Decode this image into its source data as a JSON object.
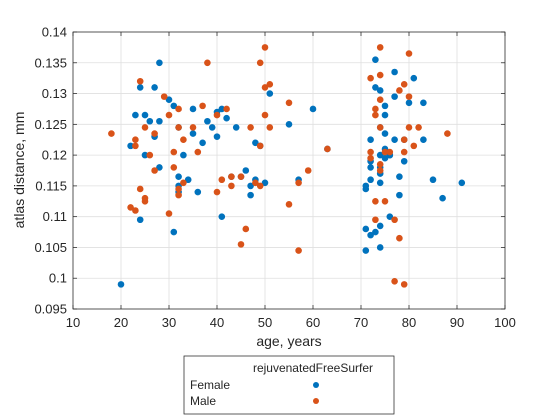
{
  "colors": {
    "female": "#0072BD",
    "male": "#D95319",
    "grid": "#dfdfdf",
    "axis": "#262626"
  },
  "chart_data": {
    "type": "scatter",
    "xlabel": "age, years",
    "ylabel": "atlas distance, mm",
    "xlim": [
      10,
      100
    ],
    "ylim": [
      0.095,
      0.14
    ],
    "xticks": [
      10,
      20,
      30,
      40,
      50,
      60,
      70,
      80,
      90,
      100
    ],
    "xtick_labels": [
      "10",
      "20",
      "30",
      "40",
      "50",
      "60",
      "70",
      "80",
      "90",
      "100"
    ],
    "yticks": [
      0.095,
      0.1,
      0.105,
      0.11,
      0.115,
      0.12,
      0.125,
      0.13,
      0.135,
      0.14
    ],
    "ytick_labels": [
      "0.095",
      "0.1",
      "0.105",
      "0.11",
      "0.115",
      "0.12",
      "0.125",
      "0.13",
      "0.135",
      "0.14"
    ],
    "grid": true,
    "legend": {
      "title": "rejuvenatedFreeSurfer",
      "placement": "below-plot"
    },
    "series": [
      {
        "name": "Female",
        "color": "#0072BD",
        "points": [
          [
            20,
            0.099
          ],
          [
            22,
            0.1215
          ],
          [
            23,
            0.1265
          ],
          [
            24,
            0.131
          ],
          [
            24,
            0.1095
          ],
          [
            25,
            0.1265
          ],
          [
            25,
            0.12
          ],
          [
            26,
            0.1255
          ],
          [
            27,
            0.131
          ],
          [
            27,
            0.123
          ],
          [
            28,
            0.135
          ],
          [
            28,
            0.1255
          ],
          [
            28,
            0.118
          ],
          [
            30,
            0.129
          ],
          [
            31,
            0.128
          ],
          [
            31,
            0.1075
          ],
          [
            32,
            0.1245
          ],
          [
            32,
            0.1165
          ],
          [
            32,
            0.115
          ],
          [
            32,
            0.114
          ],
          [
            33,
            0.12
          ],
          [
            34,
            0.116
          ],
          [
            35,
            0.1275
          ],
          [
            35,
            0.1235
          ],
          [
            36,
            0.114
          ],
          [
            37,
            0.122
          ],
          [
            38,
            0.1255
          ],
          [
            39,
            0.1245
          ],
          [
            40,
            0.127
          ],
          [
            40,
            0.123
          ],
          [
            41,
            0.1275
          ],
          [
            41,
            0.11
          ],
          [
            42,
            0.126
          ],
          [
            43,
            0.1165
          ],
          [
            44,
            0.1245
          ],
          [
            45,
            0.1165
          ],
          [
            46,
            0.1175
          ],
          [
            47,
            0.115
          ],
          [
            47,
            0.1135
          ],
          [
            48,
            0.116
          ],
          [
            48,
            0.122
          ],
          [
            49,
            0.1215
          ],
          [
            50,
            0.1155
          ],
          [
            51,
            0.13
          ],
          [
            55,
            0.125
          ],
          [
            57,
            0.116
          ],
          [
            60,
            0.1275
          ],
          [
            63,
            0.121
          ],
          [
            71,
            0.1045
          ],
          [
            71,
            0.108
          ],
          [
            71,
            0.1145
          ],
          [
            71,
            0.115
          ],
          [
            72,
            0.116
          ],
          [
            72,
            0.118
          ],
          [
            72,
            0.119
          ],
          [
            72,
            0.1225
          ],
          [
            72,
            0.107
          ],
          [
            73,
            0.1075
          ],
          [
            73,
            0.131
          ],
          [
            73,
            0.1355
          ],
          [
            74,
            0.1305
          ],
          [
            74,
            0.1245
          ],
          [
            74,
            0.118
          ],
          [
            74,
            0.1155
          ],
          [
            74,
            0.117
          ],
          [
            74,
            0.12
          ],
          [
            74,
            0.1085
          ],
          [
            74,
            0.105
          ],
          [
            75,
            0.128
          ],
          [
            75,
            0.1265
          ],
          [
            75,
            0.1235
          ],
          [
            75,
            0.121
          ],
          [
            75,
            0.1195
          ],
          [
            76,
            0.12
          ],
          [
            76,
            0.11
          ],
          [
            76,
            0.12
          ],
          [
            77,
            0.1295
          ],
          [
            77,
            0.1335
          ],
          [
            77,
            0.1225
          ],
          [
            78,
            0.1135
          ],
          [
            78,
            0.1165
          ],
          [
            79,
            0.119
          ],
          [
            79,
            0.1225
          ],
          [
            80,
            0.1285
          ],
          [
            81,
            0.1325
          ],
          [
            83,
            0.1285
          ],
          [
            83,
            0.1225
          ],
          [
            85,
            0.116
          ],
          [
            87,
            0.113
          ],
          [
            91,
            0.1155
          ]
        ]
      },
      {
        "name": "Male",
        "color": "#D95319",
        "points": [
          [
            18,
            0.1235
          ],
          [
            22,
            0.1115
          ],
          [
            23,
            0.111
          ],
          [
            23,
            0.1225
          ],
          [
            23,
            0.1215
          ],
          [
            24,
            0.132
          ],
          [
            24,
            0.1145
          ],
          [
            25,
            0.113
          ],
          [
            25,
            0.1125
          ],
          [
            25,
            0.1245
          ],
          [
            26,
            0.12
          ],
          [
            27,
            0.1175
          ],
          [
            27,
            0.1235
          ],
          [
            29,
            0.1295
          ],
          [
            30,
            0.1265
          ],
          [
            30,
            0.1105
          ],
          [
            31,
            0.1205
          ],
          [
            31,
            0.118
          ],
          [
            32,
            0.1275
          ],
          [
            32,
            0.1245
          ],
          [
            32,
            0.1145
          ],
          [
            32,
            0.1135
          ],
          [
            33,
            0.1225
          ],
          [
            33,
            0.1155
          ],
          [
            35,
            0.1245
          ],
          [
            36,
            0.1205
          ],
          [
            37,
            0.128
          ],
          [
            38,
            0.135
          ],
          [
            40,
            0.114
          ],
          [
            40,
            0.1265
          ],
          [
            41,
            0.116
          ],
          [
            42,
            0.1275
          ],
          [
            43,
            0.1165
          ],
          [
            43,
            0.115
          ],
          [
            45,
            0.1165
          ],
          [
            45,
            0.1055
          ],
          [
            46,
            0.108
          ],
          [
            47,
            0.1245
          ],
          [
            48,
            0.1155
          ],
          [
            49,
            0.1215
          ],
          [
            49,
            0.115
          ],
          [
            49,
            0.135
          ],
          [
            50,
            0.131
          ],
          [
            50,
            0.1375
          ],
          [
            50,
            0.1265
          ],
          [
            51,
            0.1245
          ],
          [
            51,
            0.1315
          ],
          [
            55,
            0.1285
          ],
          [
            55,
            0.112
          ],
          [
            57,
            0.1045
          ],
          [
            57,
            0.1155
          ],
          [
            59,
            0.1175
          ],
          [
            63,
            0.121
          ],
          [
            72,
            0.1325
          ],
          [
            72,
            0.1205
          ],
          [
            72,
            0.1195
          ],
          [
            73,
            0.1265
          ],
          [
            73,
            0.1275
          ],
          [
            73,
            0.1125
          ],
          [
            73,
            0.1095
          ],
          [
            74,
            0.1375
          ],
          [
            74,
            0.133
          ],
          [
            74,
            0.129
          ],
          [
            74,
            0.1245
          ],
          [
            74,
            0.1185
          ],
          [
            74,
            0.1175
          ],
          [
            75,
            0.1205
          ],
          [
            75,
            0.1125
          ],
          [
            76,
            0.1205
          ],
          [
            77,
            0.1095
          ],
          [
            77,
            0.0995
          ],
          [
            78,
            0.1065
          ],
          [
            78,
            0.1305
          ],
          [
            79,
            0.1315
          ],
          [
            79,
            0.1225
          ],
          [
            79,
            0.1205
          ],
          [
            79,
            0.099
          ],
          [
            80,
            0.1365
          ],
          [
            80,
            0.1295
          ],
          [
            80,
            0.1245
          ],
          [
            81,
            0.1215
          ],
          [
            82,
            0.1245
          ],
          [
            88,
            0.1235
          ]
        ]
      }
    ]
  }
}
